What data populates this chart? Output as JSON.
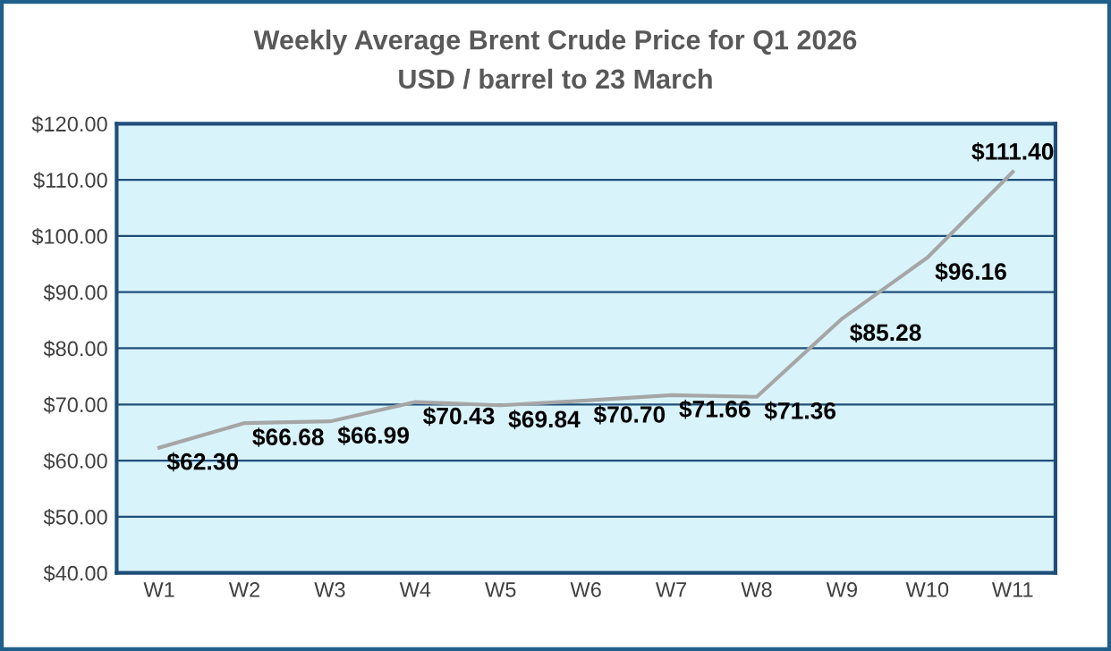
{
  "chart_data": {
    "type": "line",
    "title": "Weekly Average Brent Crude Price for Q1 2026",
    "subtitle": "USD / barrel to 23 March",
    "categories": [
      "W1",
      "W2",
      "W3",
      "W4",
      "W5",
      "W6",
      "W7",
      "W8",
      "W9",
      "W10",
      "W11"
    ],
    "series": [
      {
        "color": "#a6a6a6",
        "values": [
          62.3,
          66.68,
          66.99,
          70.43,
          69.84,
          70.7,
          71.66,
          71.36,
          85.28,
          96.16,
          111.4
        ],
        "value_labels": [
          "$62.30",
          "$66.68",
          "$66.99",
          "$70.43",
          "$69.84",
          "$70.70",
          "$71.66",
          "$71.36",
          "$85.28",
          "$96.16",
          "$111.40"
        ]
      }
    ],
    "ylim": [
      40,
      120
    ],
    "yticks": [
      {
        "value": 40,
        "label": "$40.00"
      },
      {
        "value": 50,
        "label": "$50.00"
      },
      {
        "value": 60,
        "label": "$60.00"
      },
      {
        "value": 70,
        "label": "$70.00"
      },
      {
        "value": 80,
        "label": "$80.00"
      },
      {
        "value": 90,
        "label": "$90.00"
      },
      {
        "value": 100,
        "label": "$100.00"
      },
      {
        "value": 110,
        "label": "$110.00"
      },
      {
        "value": 120,
        "label": "$120.00"
      }
    ],
    "grid": "y",
    "marker": "none",
    "line_style": "solid",
    "legend": false
  }
}
